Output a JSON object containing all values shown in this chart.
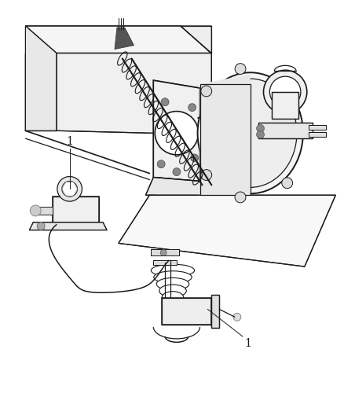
{
  "bg_color": "#ffffff",
  "line_color": "#1a1a1a",
  "label_color": "#1a1a1a",
  "label_1_text": "1",
  "figsize": [
    4.38,
    5.33
  ],
  "dpi": 100,
  "lw": 0.9
}
